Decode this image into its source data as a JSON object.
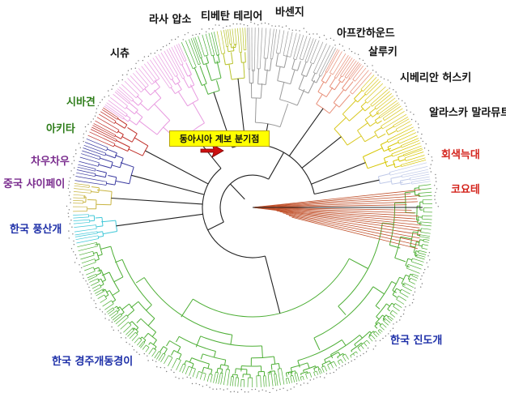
{
  "clade_labels": {
    "lhasa_apso": "라사 압소",
    "tibetan_terrier": "티베탄 테리어",
    "basenji": "바센지",
    "afghan_hound": "아프칸하운드",
    "shih_tzu": "시츄",
    "saluki": "살루키",
    "siberian_husky": "시베리안 허스키",
    "shiba_inu": "시바견",
    "alaskan_malamute": "알라스카 말라뮤트",
    "akita": "아키타",
    "gray_wolf": "회색늑대",
    "chow_chow": "차우차우",
    "coyote": "코요테",
    "shar_pei": "중국 샤이페이",
    "pungsan": "한국 풍산개",
    "jindo": "한국 진도개",
    "donggyeong": "한국 경주개동경이"
  },
  "callout": {
    "text": "동아시아 계보 분기점"
  },
  "colors": {
    "shih_tzu": "#e89ae0",
    "lhasa_apso": "#4caf3a",
    "tibetan_terrier": "#b8c22a",
    "basenji": "#9a9a9a",
    "afghan_hound": "#e8907a",
    "saluki": "#d9c820",
    "siberian_husky": "#d6c600",
    "alaskan_malamute": "#bfc9e8",
    "gray_wolf": "#c0502a",
    "coyote": "#c0502a",
    "shiba_inu": "#c0302a",
    "akita": "#3a3aa0",
    "chow_chow": "#c8b440",
    "shar_pei": "#40c8d8",
    "korean": "#4cae34",
    "backbone": "#222222",
    "arrow": "#cc1010",
    "callout_bg": "#ffff00"
  },
  "icons": {
    "pointer": "red-arrow-icon"
  }
}
